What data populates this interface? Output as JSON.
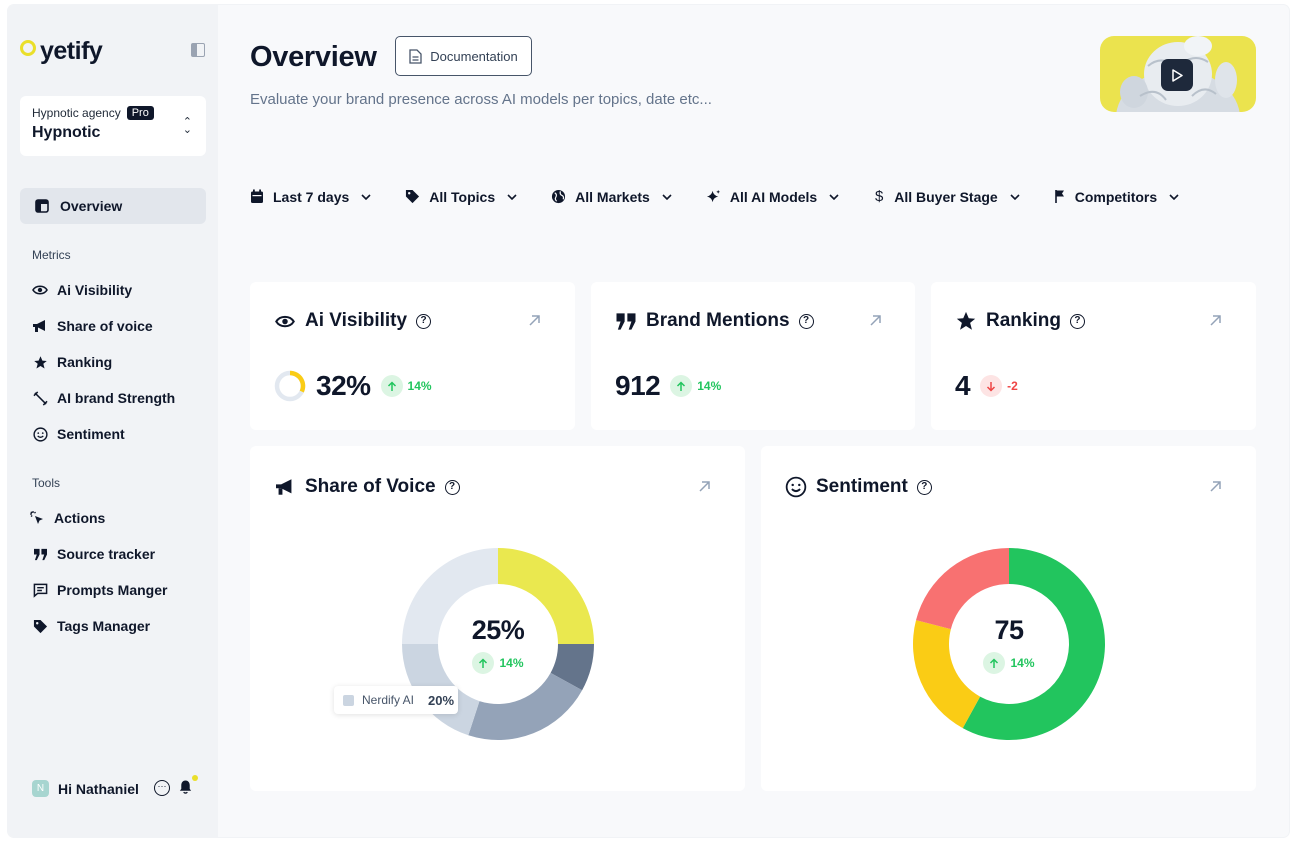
{
  "app": {
    "brand": "yetify"
  },
  "workspace": {
    "agency": "Hypnotic agency",
    "badge": "Pro",
    "name": "Hypnotic"
  },
  "sidebar": {
    "active": "Overview",
    "metrics_label": "Metrics",
    "metrics": [
      "Ai Visibility",
      "Share of voice",
      "Ranking",
      "AI brand Strength",
      "Sentiment"
    ],
    "tools_label": "Tools",
    "tools": [
      "Actions",
      "Source tracker",
      "Prompts Manger",
      "Tags Manager"
    ],
    "user": {
      "initial": "N",
      "greeting": "Hi Nathaniel"
    }
  },
  "header": {
    "title": "Overview",
    "doc_button": "Documentation",
    "subtitle": "Evaluate your brand presence across AI models per topics, date etc..."
  },
  "filters": [
    "Last 7 days",
    "All Topics",
    "All Markets",
    "All AI Models",
    "All Buyer Stage",
    "Competitors"
  ],
  "cards": {
    "visibility": {
      "title": "Ai Visibility",
      "value": "32%",
      "delta": "14%",
      "direction": "up",
      "progress": 0.32
    },
    "mentions": {
      "title": "Brand Mentions",
      "value": "912",
      "delta": "14%",
      "direction": "up"
    },
    "ranking": {
      "title": "Ranking",
      "value": "4",
      "delta": "-2",
      "direction": "down"
    },
    "sov": {
      "title": "Share of Voice",
      "value": "25%",
      "delta": "14%",
      "tooltip_label": "Nerdify AI",
      "tooltip_value": "20%"
    },
    "sentiment": {
      "title": "Sentiment",
      "value": "75",
      "delta": "14%"
    }
  },
  "chart_data": [
    {
      "type": "pie",
      "values": [
        25,
        8,
        22,
        20,
        25
      ],
      "colors": [
        "#eae84f",
        "#64748b",
        "#94a3b8",
        "#cbd5e1",
        "#e2e8f0"
      ]
    },
    {
      "type": "pie",
      "values": [
        58,
        21,
        21
      ],
      "colors": [
        "#22c55e",
        "#facc15",
        "#f87171"
      ]
    }
  ]
}
